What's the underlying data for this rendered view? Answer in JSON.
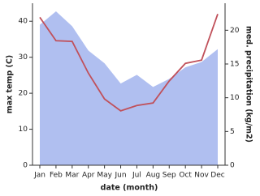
{
  "chart_data": {
    "type": "line",
    "x_label": "date (month)",
    "y_label": "max temp (C)",
    "y2_label": "med. precipitation (kg/m2)",
    "categories": [
      "Jan",
      "Feb",
      "Mar",
      "Apr",
      "May",
      "Jun",
      "Jul",
      "Aug",
      "Sep",
      "Oct",
      "Nov",
      "Dec"
    ],
    "ylim": [
      0,
      45
    ],
    "yticks": [
      0,
      10,
      20,
      30,
      40
    ],
    "y2lim": [
      0,
      24
    ],
    "y2ticks": [
      0,
      5,
      10,
      15,
      20
    ],
    "series": [
      {
        "name": "med. precipitation (kg/m2)",
        "type": "area",
        "axis": "y2",
        "color": "#b0bff0",
        "values": [
          20.8,
          22.8,
          20.6,
          17.0,
          15.1,
          12.1,
          13.4,
          11.6,
          12.8,
          14.5,
          15.3,
          17.2
        ]
      },
      {
        "name": "max temp (C)",
        "type": "line",
        "axis": "y",
        "color": "#c0505a",
        "values": [
          41.1,
          34.6,
          34.4,
          25.6,
          18.4,
          15.1,
          16.6,
          17.3,
          23.4,
          28.3,
          29.2,
          42.0
        ]
      }
    ]
  }
}
